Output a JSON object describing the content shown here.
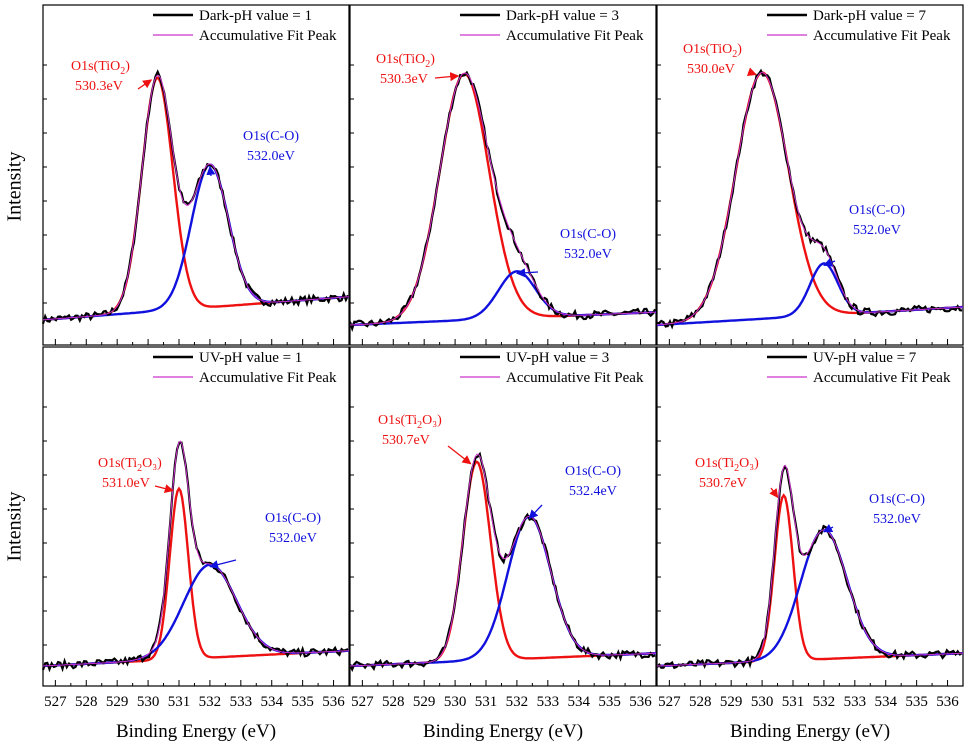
{
  "figure": {
    "ylabel_top": "Intensity",
    "ylabel_bottom": "Intensity",
    "xlabel": "Binding Energy (eV)",
    "xticks": [
      "527",
      "528",
      "529",
      "530",
      "531",
      "532",
      "533",
      "534",
      "535",
      "536"
    ],
    "colors": {
      "data": "#000000",
      "envelope": "#cc33cc",
      "tio2": "#ee1111",
      "co": "#1111dd"
    }
  },
  "chart_data": [
    {
      "type": "line",
      "panel": "dark-ph1",
      "title": "Dark-pH value = 1",
      "legend": [
        "Dark-pH value = 1",
        "Accumulative Fit Peak"
      ],
      "xlim": [
        526.6,
        536.5
      ],
      "ylim": [
        0,
        1.08
      ],
      "peaks": [
        {
          "name": "O1s(TiO2)",
          "center": 530.3,
          "height": 0.9,
          "sigma": 0.5,
          "color": "tio2"
        },
        {
          "name": "O1s(C-O)",
          "center": 532.0,
          "height": 0.55,
          "sigma": 0.6,
          "color": "co"
        }
      ],
      "background": {
        "start": 0.02,
        "slope": 0.009
      },
      "annotations": [
        {
          "label": "O1s(TiO",
          "sub": "2",
          "tail": ")",
          "value": "530.3eV",
          "color": "tio2"
        },
        {
          "label": "O1s(C-O)",
          "sub": "",
          "tail": "",
          "value": "532.0eV",
          "color": "co"
        }
      ]
    },
    {
      "type": "line",
      "panel": "dark-ph3",
      "title": "Dark-pH value = 3",
      "legend": [
        "Dark-pH value = 3",
        "Accumulative Fit Peak"
      ],
      "xlim": [
        526.6,
        536.5
      ],
      "ylim": [
        0,
        1.08
      ],
      "peaks": [
        {
          "name": "O1s(TiO2)",
          "center": 530.3,
          "height": 0.95,
          "sigma": 0.8,
          "color": "tio2"
        },
        {
          "name": "O1s(C-O)",
          "center": 532.0,
          "height": 0.18,
          "sigma": 0.6,
          "color": "co"
        }
      ],
      "background": {
        "start": 0.0,
        "slope": 0.005
      },
      "annotations": [
        {
          "label": "O1s(TiO",
          "sub": "2",
          "tail": ")",
          "value": "530.3eV",
          "color": "tio2"
        },
        {
          "label": "O1s(C-O)",
          "sub": "",
          "tail": "",
          "value": "532.0eV",
          "color": "co"
        }
      ]
    },
    {
      "type": "line",
      "panel": "dark-ph7",
      "title": "Dark-pH value = 7",
      "legend": [
        "Dark-pH value = 7",
        "Accumulative Fit Peak"
      ],
      "xlim": [
        526.6,
        536.5
      ],
      "ylim": [
        0,
        1.08
      ],
      "peaks": [
        {
          "name": "O1s(TiO2)",
          "center": 530.0,
          "height": 0.95,
          "sigma": 0.85,
          "color": "tio2"
        },
        {
          "name": "O1s(C-O)",
          "center": 532.0,
          "height": 0.2,
          "sigma": 0.45,
          "color": "co"
        }
      ],
      "background": {
        "start": 0.0,
        "slope": 0.007
      },
      "annotations": [
        {
          "label": "O1s(TiO",
          "sub": "2",
          "tail": ")",
          "value": "530.0eV",
          "color": "tio2"
        },
        {
          "label": "O1s(C-O)",
          "sub": "",
          "tail": "",
          "value": "532.0eV",
          "color": "co"
        }
      ]
    },
    {
      "type": "line",
      "panel": "uv-ph1",
      "title": "UV-pH value = 1",
      "legend": [
        "UV-pH value = 1",
        "Accumulative Fit Peak"
      ],
      "xlim": [
        526.6,
        536.5
      ],
      "ylim": [
        0,
        1.08
      ],
      "peaks": [
        {
          "name": "O1s(Ti2O3)",
          "center": 531.0,
          "height": 0.66,
          "sigma": 0.3,
          "color": "tio2"
        },
        {
          "name": "O1s(C-O)",
          "center": 532.0,
          "height": 0.36,
          "sigma": 0.85,
          "color": "co"
        }
      ],
      "background": {
        "start": 0.0,
        "slope": 0.006
      },
      "annotations": [
        {
          "label": "O1s(Ti",
          "sub": "2",
          "tail": "O₃)",
          "value": "531.0eV",
          "color": "tio2"
        },
        {
          "label": "O1s(C-O)",
          "sub": "",
          "tail": "",
          "value": "532.0eV",
          "color": "co"
        }
      ]
    },
    {
      "type": "line",
      "panel": "uv-ph3",
      "title": "UV-pH value = 3",
      "legend": [
        "UV-pH value = 3",
        "Accumulative Fit Peak"
      ],
      "xlim": [
        526.6,
        536.5
      ],
      "ylim": [
        0,
        1.08
      ],
      "peaks": [
        {
          "name": "O1s(Ti2O3)",
          "center": 530.7,
          "height": 0.77,
          "sigma": 0.45,
          "color": "tio2"
        },
        {
          "name": "O1s(C-O)",
          "center": 532.4,
          "height": 0.55,
          "sigma": 0.7,
          "color": "co"
        }
      ],
      "background": {
        "start": 0.0,
        "slope": 0.005
      },
      "annotations": [
        {
          "label": "O1s(Ti",
          "sub": "2",
          "tail": "O₃)",
          "value": "530.7eV",
          "color": "tio2"
        },
        {
          "label": "O1s(C-O)",
          "sub": "",
          "tail": "",
          "value": "532.4eV",
          "color": "co"
        }
      ]
    },
    {
      "type": "line",
      "panel": "uv-ph7",
      "title": "UV-pH value = 7",
      "legend": [
        "UV-pH value = 7",
        "Accumulative Fit Peak"
      ],
      "xlim": [
        526.6,
        536.5
      ],
      "ylim": [
        0,
        1.08
      ],
      "peaks": [
        {
          "name": "O1s(Ti2O3)",
          "center": 530.7,
          "height": 0.64,
          "sigma": 0.3,
          "color": "tio2"
        },
        {
          "name": "O1s(C-O)",
          "center": 532.0,
          "height": 0.5,
          "sigma": 0.75,
          "color": "co"
        }
      ],
      "background": {
        "start": 0.0,
        "slope": 0.005
      },
      "annotations": [
        {
          "label": "O1s(Ti",
          "sub": "2",
          "tail": "O₃)",
          "value": "530.7eV",
          "color": "tio2"
        },
        {
          "label": "O1s(C-O)",
          "sub": "",
          "tail": "",
          "value": "532.0eV",
          "color": "co"
        }
      ]
    }
  ]
}
